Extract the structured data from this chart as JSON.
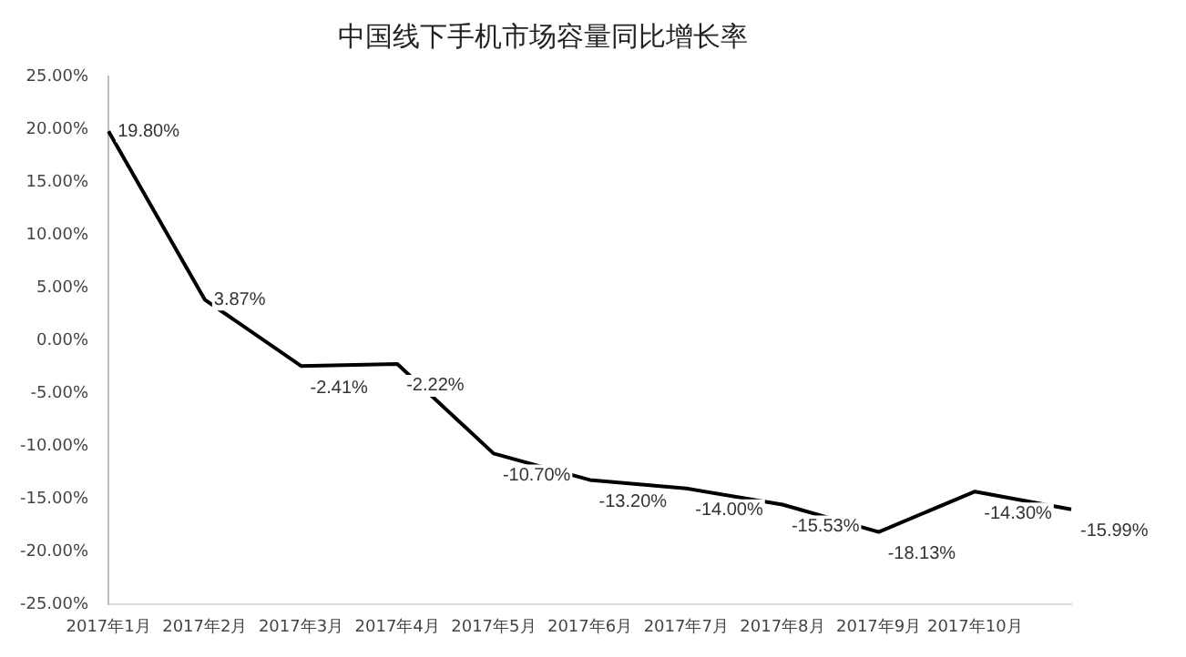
{
  "chart_data": {
    "type": "line",
    "title": "中国线下手机市场容量同比增长率",
    "categories": [
      "2017年1月",
      "2017年2月",
      "2017年3月",
      "2017年4月",
      "2017年5月",
      "2017年6月",
      "2017年7月",
      "2017年8月",
      "2017年9月",
      "2017年10月",
      null
    ],
    "series": [
      {
        "color": "#000000",
        "values": [
          19.8,
          3.87,
          -2.41,
          -2.22,
          -10.7,
          -13.2,
          -14.0,
          -15.53,
          -18.13,
          -14.3,
          -15.99
        ],
        "value_labels": [
          "19.80%",
          "3.87%",
          "-2.41%",
          "-2.22%",
          "-10.70%",
          "-13.20%",
          "-14.00%",
          "-15.53%",
          "-18.13%",
          "-14.30%",
          "-15.99%"
        ]
      }
    ],
    "ylim": [
      -25,
      25
    ],
    "yticks": [
      {
        "value": -25,
        "label": "-25.00%"
      },
      {
        "value": -20,
        "label": "-20.00%"
      },
      {
        "value": -15,
        "label": "-15.00%"
      },
      {
        "value": -10,
        "label": "-10.00%"
      },
      {
        "value": -5,
        "label": "-5.00%"
      },
      {
        "value": 0,
        "label": "0.00%"
      },
      {
        "value": 5,
        "label": "5.00%"
      },
      {
        "value": 10,
        "label": "10.00%"
      },
      {
        "value": 15,
        "label": "15.00%"
      },
      {
        "value": 20,
        "label": "20.00%"
      },
      {
        "value": 25,
        "label": "25.00%"
      }
    ],
    "grid": false,
    "legend": false,
    "marker": "none",
    "line_style": "solid"
  }
}
